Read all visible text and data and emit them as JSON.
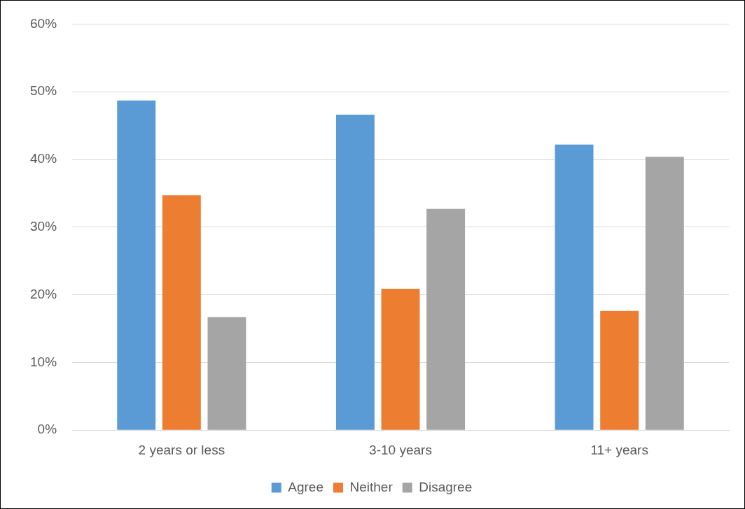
{
  "chart_data": {
    "type": "bar",
    "categories": [
      "2 years or less",
      "3-10 years",
      "11+ years"
    ],
    "series": [
      {
        "name": "Agree",
        "color": "#5b9bd5",
        "values": [
          48.7,
          46.6,
          42.2
        ]
      },
      {
        "name": "Neither",
        "color": "#ed7d31",
        "values": [
          34.7,
          20.9,
          17.6
        ]
      },
      {
        "name": "Disagree",
        "color": "#a5a5a5",
        "values": [
          16.7,
          32.7,
          40.4
        ]
      }
    ],
    "ylim": [
      0,
      60
    ],
    "yticks": [
      {
        "value": 0,
        "label": "0%"
      },
      {
        "value": 10,
        "label": "10%"
      },
      {
        "value": 20,
        "label": "20%"
      },
      {
        "value": 30,
        "label": "30%"
      },
      {
        "value": 40,
        "label": "40%"
      },
      {
        "value": 50,
        "label": "50%"
      },
      {
        "value": 60,
        "label": "60%"
      }
    ],
    "grid": "y",
    "legend": "bottom"
  }
}
